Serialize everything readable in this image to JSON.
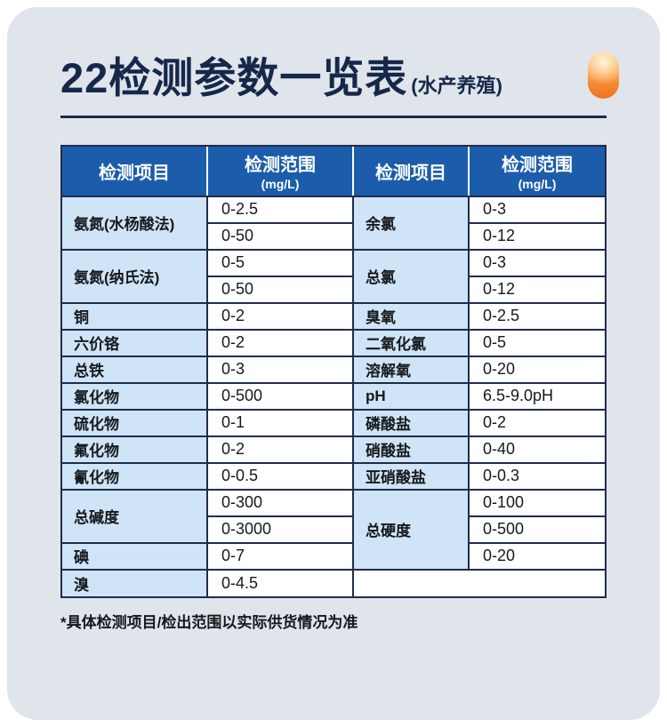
{
  "page": {
    "title": "22检测参数一览表",
    "subtitle": "(水产养殖)",
    "footnote": "*具体检测项目/检出范围以实际供货情况为准"
  },
  "colors": {
    "card_background": "#e0e5eb",
    "header_blue": "#1b5cab",
    "item_cell_blue": "#cfe4f6",
    "table_border_navy": "#1f2c4d",
    "title_navy": "#16284a",
    "accent_orange": "#f0731f"
  },
  "chart_data": {
    "type": "table",
    "title": "22检测参数一览表(水产养殖)",
    "columns": [
      {
        "label": "检测项目",
        "unit": ""
      },
      {
        "label": "检测范围",
        "unit": "(mg/L)"
      },
      {
        "label": "检测项目",
        "unit": ""
      },
      {
        "label": "检测范围",
        "unit": "(mg/L)"
      }
    ],
    "left": [
      {
        "item": "氨氮(水杨酸法)",
        "values": [
          "0-2.5",
          "0-50"
        ]
      },
      {
        "item": "氨氮(纳氏法)",
        "values": [
          "0-5",
          "0-50"
        ]
      },
      {
        "item": "铜",
        "values": [
          "0-2"
        ]
      },
      {
        "item": "六价铬",
        "values": [
          "0-2"
        ]
      },
      {
        "item": "总铁",
        "values": [
          "0-3"
        ]
      },
      {
        "item": "氯化物",
        "values": [
          "0-500"
        ]
      },
      {
        "item": "硫化物",
        "values": [
          "0-1"
        ]
      },
      {
        "item": "氟化物",
        "values": [
          "0-2"
        ]
      },
      {
        "item": "氰化物",
        "values": [
          "0-0.5"
        ]
      },
      {
        "item": "总碱度",
        "values": [
          "0-300",
          "0-3000"
        ]
      },
      {
        "item": "碘",
        "values": [
          "0-7"
        ]
      },
      {
        "item": "溴",
        "values": [
          "0-4.5"
        ]
      }
    ],
    "right": [
      {
        "item": "余氯",
        "values": [
          "0-3",
          "0-12"
        ]
      },
      {
        "item": "总氯",
        "values": [
          "0-3",
          "0-12"
        ]
      },
      {
        "item": "臭氧",
        "values": [
          "0-2.5"
        ]
      },
      {
        "item": "二氧化氯",
        "values": [
          "0-5"
        ]
      },
      {
        "item": "溶解氧",
        "values": [
          "0-20"
        ]
      },
      {
        "item": "pH",
        "values": [
          "6.5-9.0pH"
        ]
      },
      {
        "item": "磷酸盐",
        "values": [
          "0-2"
        ]
      },
      {
        "item": "硝酸盐",
        "values": [
          "0-40"
        ]
      },
      {
        "item": "亚硝酸盐",
        "values": [
          "0-0.3"
        ]
      },
      {
        "item": "总硬度",
        "values": [
          "0-100",
          "0-500",
          "0-20"
        ]
      }
    ]
  }
}
